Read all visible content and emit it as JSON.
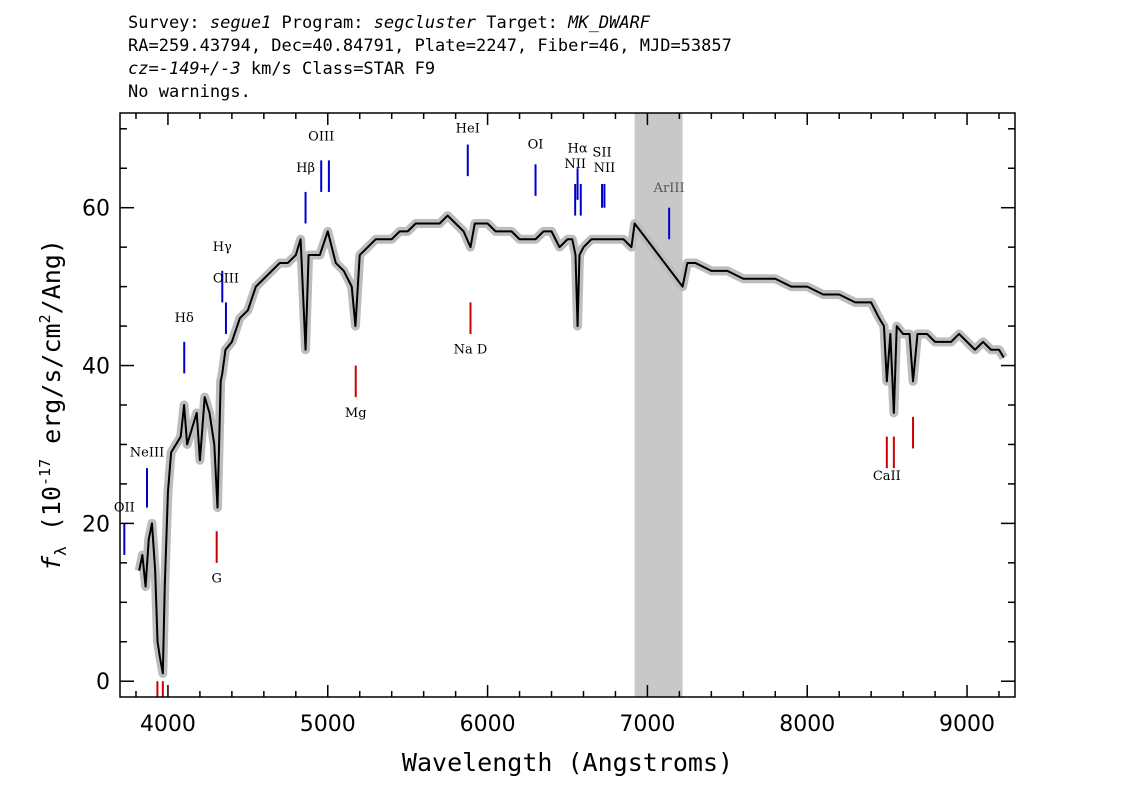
{
  "header": {
    "line1_a": "Survey: ",
    "survey": "segue1",
    "line1_b": " Program: ",
    "program": "segcluster",
    "line1_c": " Target: ",
    "target": "MK_DWARF",
    "line2": "RA=259.43794, Dec=40.84791, Plate=2247, Fiber=46, MJD=53857",
    "line3_a": "cz=",
    "cz": "-149+/-3",
    "line3_b": " km/s Class=STAR F9",
    "line4": "No warnings."
  },
  "colors": {
    "flux": "#000000",
    "error": "#bdbdbd",
    "mask": "#c8c8c8",
    "emission": "#0000cc",
    "absorption": "#cc0000"
  },
  "chart_data": {
    "type": "line",
    "xlabel": "Wavelength (Angstroms)",
    "ylabel": "f_λ (10^-17 erg/s/cm^2/Ang)",
    "ylabel_parts": {
      "f": "f",
      "sub": "λ",
      "pre": " (10",
      "exp": "-17",
      "mid": " erg/s/cm",
      "exp2": "2",
      "post": "/Ang)"
    },
    "xlim": [
      3700,
      9300
    ],
    "ylim": [
      -2,
      72
    ],
    "xticks": [
      4000,
      5000,
      6000,
      7000,
      8000,
      9000
    ],
    "yticks": [
      0,
      20,
      40,
      60
    ],
    "masked_region": [
      6920,
      7220
    ],
    "series": [
      {
        "x": [
          3820,
          3840,
          3860,
          3880,
          3900,
          3920,
          3935,
          3950,
          3968,
          3980,
          4000,
          4020,
          4050,
          4080,
          4101,
          4120,
          4150,
          4180,
          4200,
          4230,
          4260,
          4290,
          4310,
          4330,
          4340,
          4360,
          4400,
          4450,
          4500,
          4550,
          4600,
          4650,
          4700,
          4750,
          4800,
          4830,
          4861,
          4880,
          4900,
          4950,
          5000,
          5050,
          5100,
          5150,
          5173,
          5200,
          5250,
          5300,
          5350,
          5400,
          5450,
          5500,
          5550,
          5600,
          5650,
          5700,
          5750,
          5800,
          5850,
          5893,
          5920,
          5950,
          6000,
          6050,
          6100,
          6150,
          6200,
          6250,
          6300,
          6350,
          6400,
          6450,
          6500,
          6530,
          6550,
          6563,
          6575,
          6600,
          6650,
          6700,
          6750,
          6800,
          6850,
          6900,
          6920,
          7220,
          7250,
          7300,
          7400,
          7500,
          7600,
          7700,
          7800,
          7900,
          8000,
          8100,
          8200,
          8300,
          8400,
          8450,
          8480,
          8498,
          8520,
          8542,
          8560,
          8600,
          8640,
          8662,
          8690,
          8750,
          8800,
          8850,
          8900,
          8950,
          9000,
          9050,
          9100,
          9150,
          9200,
          9230
        ],
        "y": [
          14,
          16,
          12,
          18,
          20,
          14,
          5,
          3,
          1,
          12,
          24,
          29,
          30,
          31,
          35,
          30,
          32,
          34,
          28,
          36,
          34,
          30,
          22,
          38,
          39,
          42,
          43,
          46,
          47,
          50,
          51,
          52,
          53,
          53,
          54,
          56,
          42,
          54,
          54,
          54,
          57,
          53,
          52,
          50,
          45,
          54,
          55,
          56,
          56,
          56,
          57,
          57,
          58,
          58,
          58,
          58,
          59,
          58,
          57,
          55,
          58,
          58,
          58,
          57,
          57,
          57,
          56,
          56,
          56,
          57,
          57,
          55,
          56,
          56,
          54,
          45,
          54,
          55,
          56,
          56,
          56,
          56,
          56,
          55,
          58,
          50,
          53,
          53,
          52,
          52,
          51,
          51,
          51,
          50,
          50,
          49,
          49,
          48,
          48,
          46,
          45,
          38,
          44,
          34,
          45,
          44,
          44,
          38,
          44,
          44,
          43,
          43,
          43,
          44,
          43,
          42,
          43,
          42,
          42,
          41
        ]
      }
    ],
    "emission_lines": [
      {
        "label": "OII",
        "wave": 3727,
        "label_y": 21.5,
        "y0": 16,
        "y1": 20
      },
      {
        "label": "NeIII",
        "wave": 3869,
        "label_y": 28.5,
        "y0": 22,
        "y1": 27
      },
      {
        "label": "Hδ",
        "wave": 4102,
        "label_y": 45.5,
        "y0": 39,
        "y1": 43
      },
      {
        "label": "Hγ",
        "wave": 4340,
        "label_y": 54.5,
        "y0": 48,
        "y1": 52
      },
      {
        "label": "OIII",
        "wave": 4363,
        "label_y": 50.5,
        "y0": 44,
        "y1": 48
      },
      {
        "label": "Hβ",
        "wave": 4861,
        "label_y": 64.5,
        "y0": 58,
        "y1": 62
      },
      {
        "label": "OIII",
        "wave": 4959,
        "label_y": 68.5,
        "y0": 62,
        "y1": 66
      },
      {
        "label": "",
        "wave": 5007,
        "label_y": 68.5,
        "y0": 62,
        "y1": 66
      },
      {
        "label": "HeI",
        "wave": 5876,
        "label_y": 69.5,
        "y0": 64,
        "y1": 68
      },
      {
        "label": "OI",
        "wave": 6300,
        "label_y": 67.5,
        "y0": 61.5,
        "y1": 65.5
      },
      {
        "label": "NII",
        "wave": 6548,
        "label_y": 65,
        "y0": 59,
        "y1": 63
      },
      {
        "label": "Hα",
        "wave": 6563,
        "label_y": 67,
        "y0": 61,
        "y1": 65
      },
      {
        "label": "",
        "wave": 6583,
        "label_y": 65,
        "y0": 59,
        "y1": 63
      },
      {
        "label": "SII",
        "wave": 6716,
        "label_y": 66.5,
        "y0": 60,
        "y1": 63
      },
      {
        "label": "NII",
        "wave": 6731,
        "label_y": 64.5,
        "y0": 60,
        "y1": 63
      },
      {
        "label": "ArIII",
        "wave": 7136,
        "label_y": 62,
        "y0": 56,
        "y1": 60
      }
    ],
    "absorption_lines": [
      {
        "label": "G",
        "wave": 4305,
        "label_y": 12.5,
        "y0": 15,
        "y1": 19
      },
      {
        "label": "Mg",
        "wave": 5175,
        "label_y": 33.5,
        "y0": 36,
        "y1": 40
      },
      {
        "label": "Na D",
        "wave": 5893,
        "label_y": 41.5,
        "y0": 44,
        "y1": 48
      },
      {
        "label": "CaII",
        "wave": 8498,
        "label_y": 25.5,
        "y0": 27,
        "y1": 31
      },
      {
        "label": "",
        "wave": 8542,
        "label_y": 25.5,
        "y0": 27,
        "y1": 31
      },
      {
        "label": "",
        "wave": 8662,
        "label_y": 29,
        "y0": 29.5,
        "y1": 33.5
      },
      {
        "label": "",
        "wave": 3934,
        "label_y": 0,
        "y0": -2,
        "y1": 0
      },
      {
        "label": "",
        "wave": 3968,
        "label_y": 0,
        "y0": -2,
        "y1": 0
      }
    ]
  }
}
